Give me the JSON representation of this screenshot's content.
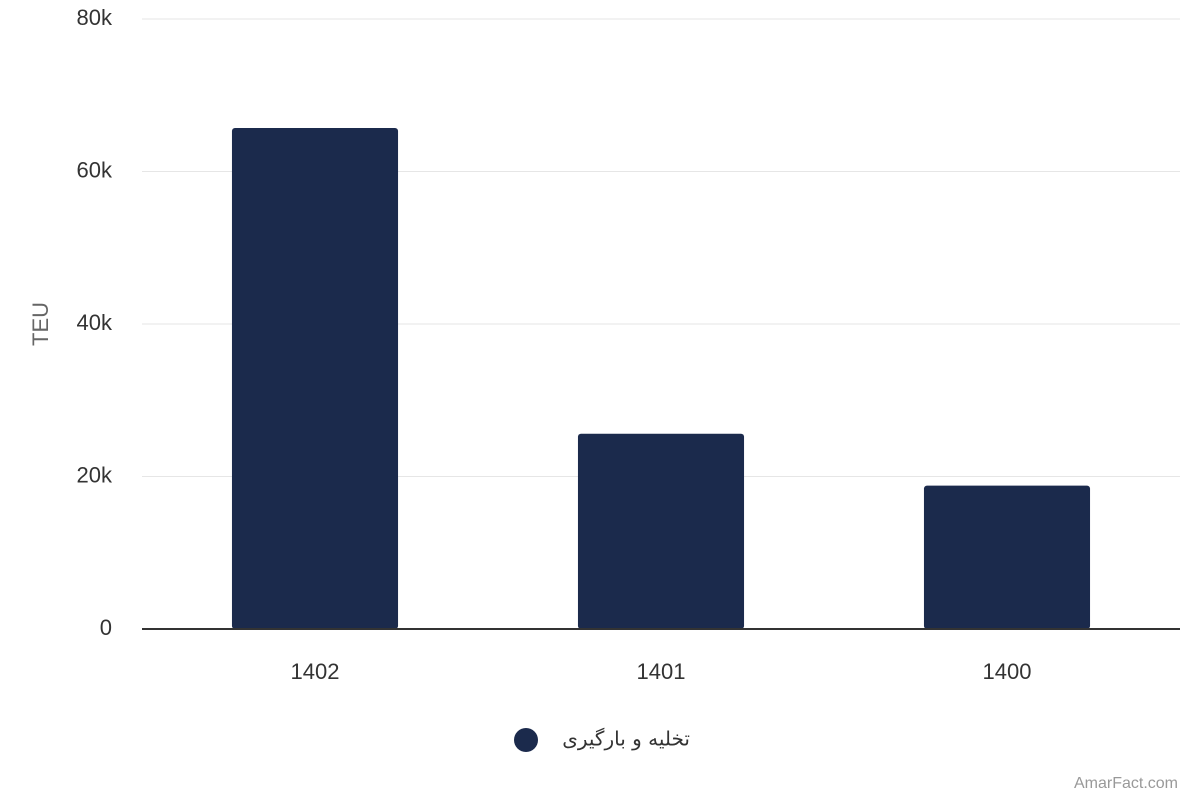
{
  "chart_data": {
    "type": "bar",
    "y_label": "TEU",
    "categories": [
      "1402",
      "1401",
      "1400"
    ],
    "series": [
      {
        "name": "تخلیه و بارگیری",
        "color": "#1b2a4c",
        "values": [
          65700,
          25600,
          18800
        ]
      }
    ],
    "ylim": [
      0,
      80000
    ],
    "yticks": [
      0,
      {
        "value": 20000,
        "label": "20k"
      },
      {
        "value": 40000,
        "label": "40k"
      },
      {
        "value": 60000,
        "label": "60k"
      },
      {
        "value": 80000,
        "label": "80k"
      }
    ],
    "grid": true,
    "legend": "bottom",
    "credit": "AmarFact.com"
  }
}
